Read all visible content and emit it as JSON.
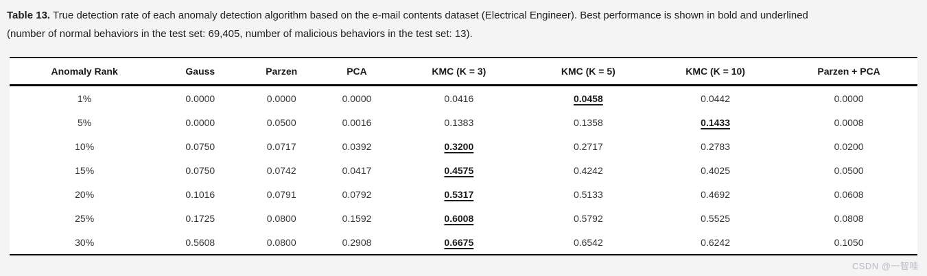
{
  "caption": {
    "label": "Table 13.",
    "line1_rest": " True detection rate of each anomaly detection algorithm based on the e-mail contents dataset (Electrical Engineer). Best performance is shown in bold and underlined",
    "line2": "(number of normal behaviors in the test set: 69,405, number of malicious behaviors in the test set: 13)."
  },
  "table": {
    "columns": [
      "Anomaly Rank",
      "Gauss",
      "Parzen",
      "PCA",
      "KMC (K = 3)",
      "KMC (K = 5)",
      "KMC (K = 10)",
      "Parzen + PCA"
    ],
    "rows": [
      {
        "rank": "1%",
        "values": [
          "0.0000",
          "0.0000",
          "0.0000",
          "0.0416",
          "0.0458",
          "0.0442",
          "0.0000"
        ],
        "best_index": 4
      },
      {
        "rank": "5%",
        "values": [
          "0.0000",
          "0.0500",
          "0.0016",
          "0.1383",
          "0.1358",
          "0.1433",
          "0.0008"
        ],
        "best_index": 5
      },
      {
        "rank": "10%",
        "values": [
          "0.0750",
          "0.0717",
          "0.0392",
          "0.3200",
          "0.2717",
          "0.2783",
          "0.0200"
        ],
        "best_index": 3
      },
      {
        "rank": "15%",
        "values": [
          "0.0750",
          "0.0742",
          "0.0417",
          "0.4575",
          "0.4242",
          "0.4025",
          "0.0500"
        ],
        "best_index": 3
      },
      {
        "rank": "20%",
        "values": [
          "0.1016",
          "0.0791",
          "0.0792",
          "0.5317",
          "0.5133",
          "0.4692",
          "0.0608"
        ],
        "best_index": 3
      },
      {
        "rank": "25%",
        "values": [
          "0.1725",
          "0.0800",
          "0.1592",
          "0.6008",
          "0.5792",
          "0.5525",
          "0.0808"
        ],
        "best_index": 3
      },
      {
        "rank": "30%",
        "values": [
          "0.5608",
          "0.0800",
          "0.2908",
          "0.6675",
          "0.6542",
          "0.6242",
          "0.1050"
        ],
        "best_index": 3
      }
    ],
    "best_note": "Best performance is shown in bold and underlined"
  },
  "watermark": {
    "text": "CSDN @一智哇"
  },
  "colors": {
    "page_background": "#f4f4f5",
    "table_background": "#ffffff",
    "border": "#000000",
    "caption_text": "#1f1f1f",
    "cell_text": "#333333",
    "watermark_text": "#b9bcc2"
  }
}
